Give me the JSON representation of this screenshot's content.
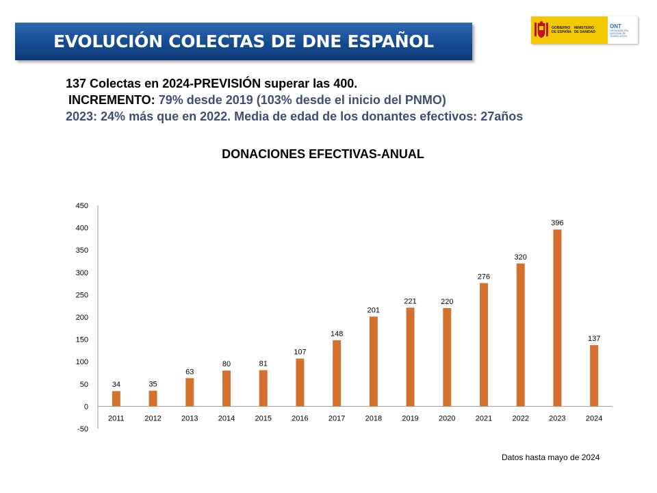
{
  "header": {
    "title": "EVOLUCIÓN COLECTAS DE DNE ESPAÑOL"
  },
  "logo": {
    "line1": "GOBIERNO",
    "line2": "DE ESPAÑA",
    "ministry1": "MINISTERIO",
    "ministry2": "DE SANIDAD",
    "ont_mark": "ONT",
    "ont_name": "ORGANIZACIÓN NACIONAL DE TRASPLANTES"
  },
  "info": {
    "line1": "137 Colectas en 2024-PREVISIÓN  superar las 400.",
    "line2_label": "INCREMENTO:",
    "line2_value": "79% desde 2019  (103% desde el inicio  del PNMO)",
    "line3": "2023: 24% más que en 2022. Media de edad de los donantes efectivos: 27años"
  },
  "chart_data": {
    "type": "bar",
    "title": "DONACIONES EFECTIVAS-ANUAL",
    "categories": [
      "2011",
      "2012",
      "2013",
      "2014",
      "2015",
      "2016",
      "2017",
      "2018",
      "2019",
      "2020",
      "2021",
      "2022",
      "2023",
      "2024"
    ],
    "values": [
      34,
      35,
      63,
      80,
      81,
      107,
      148,
      201,
      221,
      220,
      276,
      320,
      396,
      137
    ],
    "ylim": [
      -50,
      450
    ],
    "yticks": [
      "-50",
      "0",
      "50",
      "100",
      "150",
      "200",
      "250",
      "300",
      "350",
      "400",
      "450"
    ],
    "bar_color": "#d4712f",
    "grid": false,
    "legend": "none"
  },
  "footnote": "Datos hasta mayo de 2024"
}
